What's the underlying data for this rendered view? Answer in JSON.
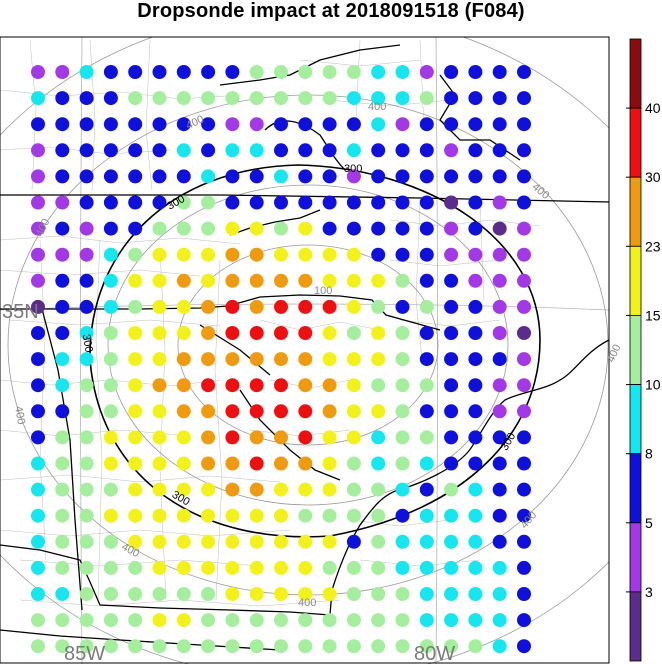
{
  "title": "Dropsonde impact at 2018091518 (F084)",
  "palette": {
    "1": "#5b2c8c",
    "2": "#a238e6",
    "3": "#1010dc",
    "4": "#16e6ee",
    "5": "#a4ee9e",
    "6": "#f2f21a",
    "7": "#f09a10",
    "8": "#ee1010",
    "9": "#8a0c0c"
  },
  "colorbar": {
    "ticks": [
      "40",
      "30",
      "23",
      "15",
      "10",
      "8",
      "5",
      "3"
    ],
    "levels": [
      9,
      8,
      7,
      6,
      5,
      4,
      3,
      2,
      1
    ]
  },
  "labels": {
    "lat": "35N",
    "lon_west": "85W",
    "lon_east": "80W",
    "ring_100": "100",
    "ring_300": "300",
    "ring_400": "400"
  },
  "grid": {
    "rows": [
      "224333333555554423333",
      "433355555555544453333",
      "333333332233334233333",
      "233333434433343332333",
      "233333343343323333333",
      "223333553333333331323",
      "232335556656333332312",
      "222456667766663332222",
      "233466767777666533222",
      "133456678788865353322",
      "334566678888656533321",
      "344566777777666533332",
      "345567788887765553322",
      "335566778888766533322",
      "355666678778664553333",
      "455666677877654543333",
      "455566667766655435433",
      "455666666665555344433",
      "455566666666635444433",
      "455556666666555444443",
      "445555556666655544443",
      "555556655555555544443",
      "555555555555555555543"
    ]
  }
}
